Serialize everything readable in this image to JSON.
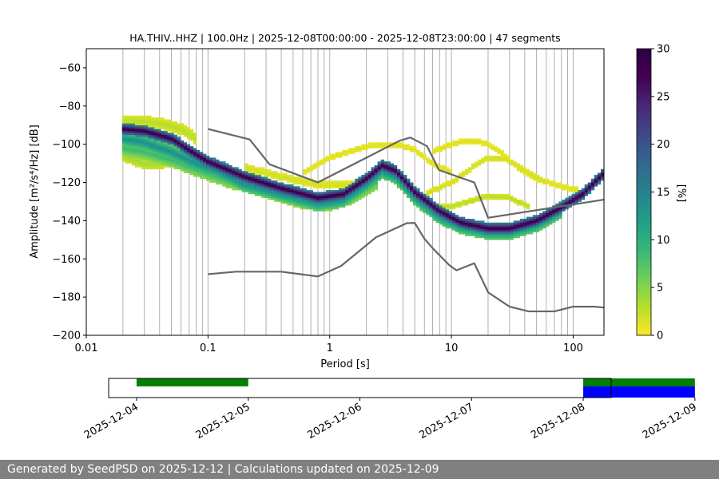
{
  "chart_data": {
    "type": "heatmap",
    "title": "HA.THIV..HHZ | 100.0Hz | 2025-12-08T00:00:00 - 2025-12-08T23:00:00 | 47 segments",
    "xlabel": "Period [s]",
    "ylabel": "Amplitude [m²/s⁴/Hz] [dB]",
    "xscale": "log",
    "xlim": [
      0.01,
      179
    ],
    "ylim": [
      -200,
      -50
    ],
    "xticks": [
      {
        "value": 0.01,
        "label": "0.01"
      },
      {
        "value": 0.1,
        "label": "0.1"
      },
      {
        "value": 1,
        "label": "1"
      },
      {
        "value": 10,
        "label": "10"
      },
      {
        "value": 100,
        "label": "100"
      }
    ],
    "yticks": [
      {
        "value": -60,
        "label": "−60"
      },
      {
        "value": -80,
        "label": "−80"
      },
      {
        "value": -100,
        "label": "−100"
      },
      {
        "value": -120,
        "label": "−120"
      },
      {
        "value": -140,
        "label": "−140"
      },
      {
        "value": -160,
        "label": "−160"
      },
      {
        "value": -180,
        "label": "−180"
      },
      {
        "value": -200,
        "label": "−200"
      }
    ],
    "vertical_gridlines_period_s": [
      0.02,
      0.03,
      0.04,
      0.05,
      0.06,
      0.07,
      0.08,
      0.09,
      0.1,
      0.2,
      0.3,
      0.4,
      0.5,
      0.6,
      0.7,
      0.8,
      0.9,
      1,
      2,
      3,
      4,
      5,
      6,
      7,
      8,
      9,
      10,
      20,
      30,
      40,
      50,
      60,
      70,
      80,
      90,
      100
    ],
    "horizontal_gridlines": false,
    "colorbar": {
      "label": "[%]",
      "min": 0,
      "max": 30,
      "ticks": [
        {
          "value": 0,
          "label": "0"
        },
        {
          "value": 5,
          "label": "5"
        },
        {
          "value": 10,
          "label": "10"
        },
        {
          "value": 15,
          "label": "15"
        },
        {
          "value": 20,
          "label": "20"
        },
        {
          "value": 25,
          "label": "25"
        },
        {
          "value": 30,
          "label": "30"
        }
      ]
    },
    "noise_models": [
      {
        "name": "new-high-noise-model",
        "points": [
          [
            0.1,
            -92
          ],
          [
            0.22,
            -97.5
          ],
          [
            0.32,
            -110.5
          ],
          [
            0.8,
            -120
          ],
          [
            3.8,
            -98
          ],
          [
            4.6,
            -96.5
          ],
          [
            6.3,
            -101
          ],
          [
            7.9,
            -113.5
          ],
          [
            15.4,
            -120
          ],
          [
            20,
            -138.5
          ],
          [
            179,
            -129
          ]
        ]
      },
      {
        "name": "new-low-noise-model",
        "points": [
          [
            0.1,
            -168
          ],
          [
            0.17,
            -166.7
          ],
          [
            0.4,
            -166.7
          ],
          [
            0.8,
            -169.2
          ],
          [
            1.24,
            -163.7
          ],
          [
            2.4,
            -148.7
          ],
          [
            4.3,
            -141.3
          ],
          [
            5,
            -141.2
          ],
          [
            6.0,
            -149.5
          ],
          [
            7.1,
            -154.8
          ],
          [
            9.6,
            -163.3
          ],
          [
            11,
            -166
          ],
          [
            15.4,
            -162.3
          ],
          [
            20,
            -177.5
          ],
          [
            30,
            -185
          ],
          [
            43,
            -187.5
          ],
          [
            70,
            -187.5
          ],
          [
            100,
            -185
          ],
          [
            150,
            -185
          ],
          [
            179,
            -185.5
          ]
        ]
      }
    ],
    "psd_density": {
      "comment": "Probability density ridges: period [s], amplitude [dB], half-width [dB], peak probability [%]",
      "ridges": [
        {
          "points": [
            [
              0.02,
              -92
            ],
            [
              0.03,
              -93
            ],
            [
              0.05,
              -97
            ],
            [
              0.07,
              -103
            ],
            [
              0.1,
              -109
            ],
            [
              0.2,
              -117
            ],
            [
              0.4,
              -123
            ],
            [
              0.8,
              -128
            ],
            [
              1.3,
              -126
            ],
            [
              2.0,
              -118
            ],
            [
              2.7,
              -111
            ],
            [
              3.5,
              -114
            ],
            [
              5,
              -125
            ],
            [
              8,
              -135
            ],
            [
              12,
              -141
            ],
            [
              20,
              -144
            ],
            [
              30,
              -144
            ],
            [
              50,
              -140
            ],
            [
              80,
              -133
            ],
            [
              120,
              -126
            ],
            [
              179,
              -115
            ]
          ],
          "halfwidth": 3,
          "peak": 30
        },
        {
          "points": [
            [
              0.02,
              -97
            ],
            [
              0.03,
              -99
            ],
            [
              0.05,
              -104
            ],
            [
              0.08,
              -110
            ],
            [
              0.12,
              -114
            ],
            [
              0.2,
              -121
            ],
            [
              0.4,
              -126
            ],
            [
              0.8,
              -131
            ],
            [
              1.3,
              -129
            ],
            [
              2.0,
              -121
            ],
            [
              2.7,
              -114
            ],
            [
              3.5,
              -117
            ],
            [
              5,
              -128
            ],
            [
              8,
              -138
            ],
            [
              12,
              -143
            ],
            [
              20,
              -146
            ],
            [
              30,
              -146
            ],
            [
              50,
              -142
            ],
            [
              80,
              -135
            ]
          ],
          "halfwidth": 4,
          "peak": 14
        },
        {
          "points": [
            [
              0.02,
              -102
            ],
            [
              0.03,
              -104
            ],
            [
              0.05,
              -108
            ],
            [
              0.08,
              -113
            ],
            [
              0.15,
              -119
            ],
            [
              0.3,
              -124
            ],
            [
              0.6,
              -130
            ],
            [
              1.0,
              -131
            ],
            [
              1.6,
              -127
            ],
            [
              2.5,
              -119
            ]
          ],
          "halfwidth": 4,
          "peak": 9
        },
        {
          "points": [
            [
              0.02,
              -106
            ],
            [
              0.03,
              -110
            ],
            [
              0.04,
              -110
            ],
            [
              0.06,
              -107
            ],
            [
              0.1,
              -110
            ],
            [
              0.2,
              -117
            ],
            [
              0.5,
              -126
            ],
            [
              1.0,
              -129
            ]
          ],
          "halfwidth": 3,
          "peak": 4
        },
        {
          "points": [
            [
              0.02,
              -88
            ],
            [
              0.03,
              -88
            ],
            [
              0.04,
              -89
            ],
            [
              0.06,
              -92
            ],
            [
              0.08,
              -97
            ]
          ],
          "halfwidth": 3,
          "peak": 3
        },
        {
          "points": [
            [
              0.2,
              -112
            ],
            [
              0.4,
              -117
            ],
            [
              0.8,
              -121
            ],
            [
              1.6,
              -121
            ],
            [
              2.5,
              -118
            ]
          ],
          "halfwidth": 2,
          "peak": 2
        },
        {
          "points": [
            [
              0.6,
              -115
            ],
            [
              1.0,
              -107
            ],
            [
              2.0,
              -101
            ],
            [
              3.5,
              -100
            ],
            [
              5,
              -103
            ],
            [
              7,
              -110
            ],
            [
              10,
              -115
            ]
          ],
          "halfwidth": 1.5,
          "peak": 1.5
        },
        {
          "points": [
            [
              7,
              -104
            ],
            [
              10,
              -100
            ],
            [
              13,
              -98
            ],
            [
              18,
              -99
            ],
            [
              25,
              -104
            ],
            [
              35,
              -112
            ],
            [
              50,
              -118
            ],
            [
              80,
              -122
            ],
            [
              110,
              -124
            ]
          ],
          "halfwidth": 1.5,
          "peak": 1.5
        },
        {
          "points": [
            [
              6,
              -126
            ],
            [
              10,
              -120
            ],
            [
              15,
              -112
            ],
            [
              20,
              -107
            ],
            [
              28,
              -108
            ],
            [
              40,
              -114
            ],
            [
              60,
              -120
            ]
          ],
          "halfwidth": 1.5,
          "peak": 2
        },
        {
          "points": [
            [
              5,
              -131
            ],
            [
              9,
              -133
            ],
            [
              14,
              -130
            ],
            [
              20,
              -127
            ],
            [
              30,
              -128
            ],
            [
              45,
              -133
            ]
          ],
          "halfwidth": 1.5,
          "peak": 3
        }
      ]
    },
    "availability": {
      "date_ticks": [
        "2025-12-04",
        "2025-12-05",
        "2025-12-06",
        "2025-12-07",
        "2025-12-08",
        "2025-12-09"
      ],
      "range_days": [
        -0.25,
        4.25
      ],
      "colors": {
        "data": "#008000",
        "selected": "#0000ff"
      },
      "bars": [
        {
          "start_day": 0.0,
          "end_day": 1.0,
          "kind": "data"
        },
        {
          "start_day": 4.0,
          "end_day": 5.0,
          "kind": "data"
        },
        {
          "start_day": 4.0,
          "end_day": 5.0,
          "kind": "selected"
        }
      ]
    },
    "noise_model_color": "#666666"
  },
  "footer": {
    "text": "Generated by SeedPSD on 2025-12-12 | Calculations updated on 2025-12-09"
  }
}
